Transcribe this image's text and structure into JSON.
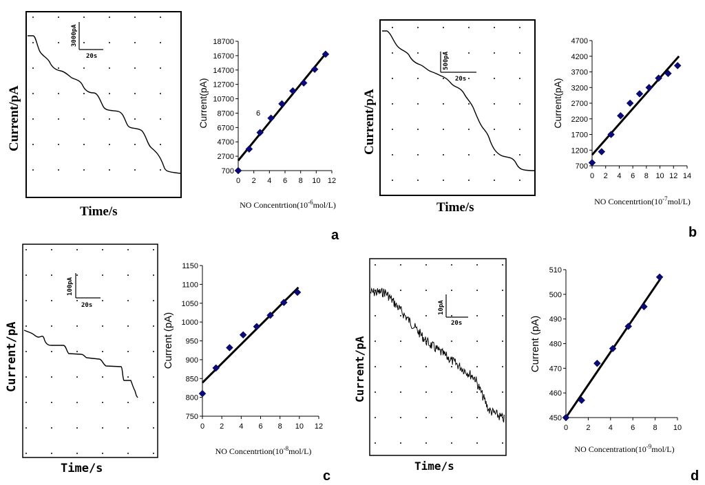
{
  "panels": [
    {
      "label": "a",
      "trace_ylabel": "Current/pA",
      "trace_xlabel": "Time/s",
      "scale_y": "3000pA",
      "scale_x": "20s",
      "annotation": "6"
    },
    {
      "label": "b",
      "trace_ylabel": "Current/pA",
      "trace_xlabel": "Time/s",
      "scale_y": "500pA",
      "scale_x": "20s"
    },
    {
      "label": "c",
      "trace_ylabel": "Current/pA",
      "trace_xlabel": "Time/s",
      "scale_y": "100pA",
      "scale_x": "20s"
    },
    {
      "label": "d",
      "trace_ylabel": "Current/pA",
      "trace_xlabel": "Time/s",
      "scale_y": "10pA",
      "scale_x": "20s"
    }
  ],
  "chart_data": [
    {
      "type": "scatter",
      "panel": "a",
      "ylabel": "Current(pA)",
      "xlabel": "NO Concentrtion(10",
      "xlabel_exp": "-6",
      "xlabel_unit": "mol/L)",
      "xlim": [
        0,
        12
      ],
      "ylim": [
        700,
        18700
      ],
      "xticks": [
        0,
        2,
        4,
        6,
        8,
        10,
        12
      ],
      "yticks": [
        700,
        2700,
        4700,
        6700,
        8700,
        10700,
        12700,
        14700,
        16700,
        18700
      ],
      "x": [
        0,
        1.4,
        2.8,
        4.2,
        5.6,
        7.0,
        8.4,
        9.8,
        11.2
      ],
      "y": [
        700,
        3700,
        6000,
        8000,
        10000,
        11800,
        12900,
        14800,
        16900
      ],
      "fit": [
        [
          0,
          2100
        ],
        [
          11.3,
          17100
        ]
      ],
      "marker_color": "#0a0a78"
    },
    {
      "type": "scatter",
      "panel": "b",
      "ylabel": "Current(pA)",
      "xlabel": "NO Concentrtion(10",
      "xlabel_exp": "-7",
      "xlabel_unit": "mol/L)",
      "xlim": [
        0,
        14
      ],
      "ylim": [
        700,
        4700
      ],
      "xticks": [
        0,
        2,
        4,
        6,
        8,
        10,
        12,
        14
      ],
      "yticks": [
        700,
        1200,
        1700,
        2200,
        2700,
        3200,
        3700,
        4200,
        4700
      ],
      "x": [
        0,
        1.4,
        2.8,
        4.2,
        5.6,
        7.0,
        8.4,
        9.8,
        11.2,
        12.6
      ],
      "y": [
        800,
        1150,
        1700,
        2300,
        2700,
        3000,
        3200,
        3500,
        3650,
        3900
      ],
      "fit": [
        [
          0,
          1050
        ],
        [
          12.8,
          4200
        ]
      ],
      "marker_color": "#0a0a78"
    },
    {
      "type": "scatter",
      "panel": "c",
      "ylabel": "Current (pA)",
      "xlabel": "NO Concentrtion(10",
      "xlabel_exp": "-8",
      "xlabel_unit": "mol/L)",
      "xlim": [
        0,
        12
      ],
      "ylim": [
        750,
        1150
      ],
      "xticks": [
        0,
        2,
        4,
        6,
        8,
        10,
        12
      ],
      "yticks": [
        750,
        800,
        850,
        900,
        950,
        1000,
        1050,
        1100,
        1150
      ],
      "x": [
        0,
        1.4,
        2.8,
        4.2,
        5.6,
        7.0,
        8.4,
        9.8
      ],
      "y": [
        810,
        878,
        932,
        966,
        988,
        1018,
        1052,
        1079
      ],
      "fit": [
        [
          0,
          839
        ],
        [
          9.9,
          1092
        ]
      ],
      "marker_color": "#0a0a78"
    },
    {
      "type": "scatter",
      "panel": "d",
      "ylabel": "Current (pA)",
      "xlabel": "NO Concentration(10",
      "xlabel_exp": "-9",
      "xlabel_unit": "mol/L)",
      "xlim": [
        0,
        10
      ],
      "ylim": [
        450,
        510
      ],
      "xticks": [
        0,
        2,
        4,
        6,
        8,
        10
      ],
      "yticks": [
        450,
        460,
        470,
        480,
        490,
        500,
        510
      ],
      "x": [
        0,
        1.4,
        2.8,
        4.2,
        5.6,
        7.0,
        8.4
      ],
      "y": [
        450,
        457,
        472,
        478,
        487,
        495,
        507
      ],
      "fit": [
        [
          0,
          450
        ],
        [
          8.5,
          506.5
        ]
      ],
      "marker_color": "#0a0a78"
    }
  ]
}
